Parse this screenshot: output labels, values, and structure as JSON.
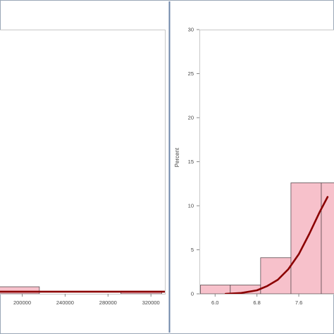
{
  "colors": {
    "frame": "#9aa8b8",
    "divider": "#6d86a8",
    "plot_border": "#c8c8c8",
    "bar_fill": "#f7c1cb",
    "bar_edge": "#5a4a4f",
    "curve": "#8b0000"
  },
  "chart_data": [
    {
      "type": "bar",
      "title": "",
      "xlabel": "",
      "ylabel": "",
      "x_tick_labels": [
        "200000",
        "240000",
        "280000",
        "320000"
      ],
      "x_tick_values": [
        200000,
        240000,
        280000,
        320000
      ],
      "xlim": [
        178000,
        333000
      ],
      "ylim": [
        0,
        30
      ],
      "bins": [
        {
          "x0": 178000,
          "x1": 216000,
          "value": 0.8
        },
        {
          "x0": 216000,
          "x1": 254000,
          "value": 0.0
        },
        {
          "x0": 254000,
          "x1": 292000,
          "value": 0.0
        },
        {
          "x0": 292000,
          "x1": 330000,
          "value": 0.3
        }
      ],
      "density_curve": {
        "x": [
          178000,
          333000
        ],
        "y": [
          0.25,
          0.25
        ]
      },
      "grid": false,
      "legend": "none"
    },
    {
      "type": "bar",
      "title": "",
      "xlabel": "",
      "ylabel": "Percent",
      "y_tick_labels": [
        "0",
        "5",
        "10",
        "15",
        "20",
        "25",
        "30"
      ],
      "y_tick_values": [
        0,
        5,
        10,
        15,
        20,
        25,
        30
      ],
      "x_tick_labels": [
        "6.0",
        "6.8",
        "7.6"
      ],
      "x_tick_values": [
        6.0,
        6.8,
        7.6
      ],
      "xlim": [
        5.7,
        8.3
      ],
      "ylim": [
        0,
        30
      ],
      "bins": [
        {
          "x0": 5.72,
          "x1": 6.29,
          "value": 1.0
        },
        {
          "x0": 6.29,
          "x1": 6.87,
          "value": 1.0
        },
        {
          "x0": 6.87,
          "x1": 7.45,
          "value": 4.1
        },
        {
          "x0": 7.45,
          "x1": 8.03,
          "value": 12.6
        },
        {
          "x0": 8.03,
          "x1": 8.3,
          "value": 12.6
        }
      ],
      "density_curve": {
        "x": [
          6.2,
          6.5,
          6.8,
          7.0,
          7.2,
          7.4,
          7.6,
          7.8,
          8.0,
          8.15
        ],
        "y": [
          0.0,
          0.1,
          0.4,
          0.9,
          1.6,
          2.8,
          4.5,
          6.8,
          9.3,
          11.0
        ]
      },
      "grid": false,
      "legend": "none"
    }
  ]
}
